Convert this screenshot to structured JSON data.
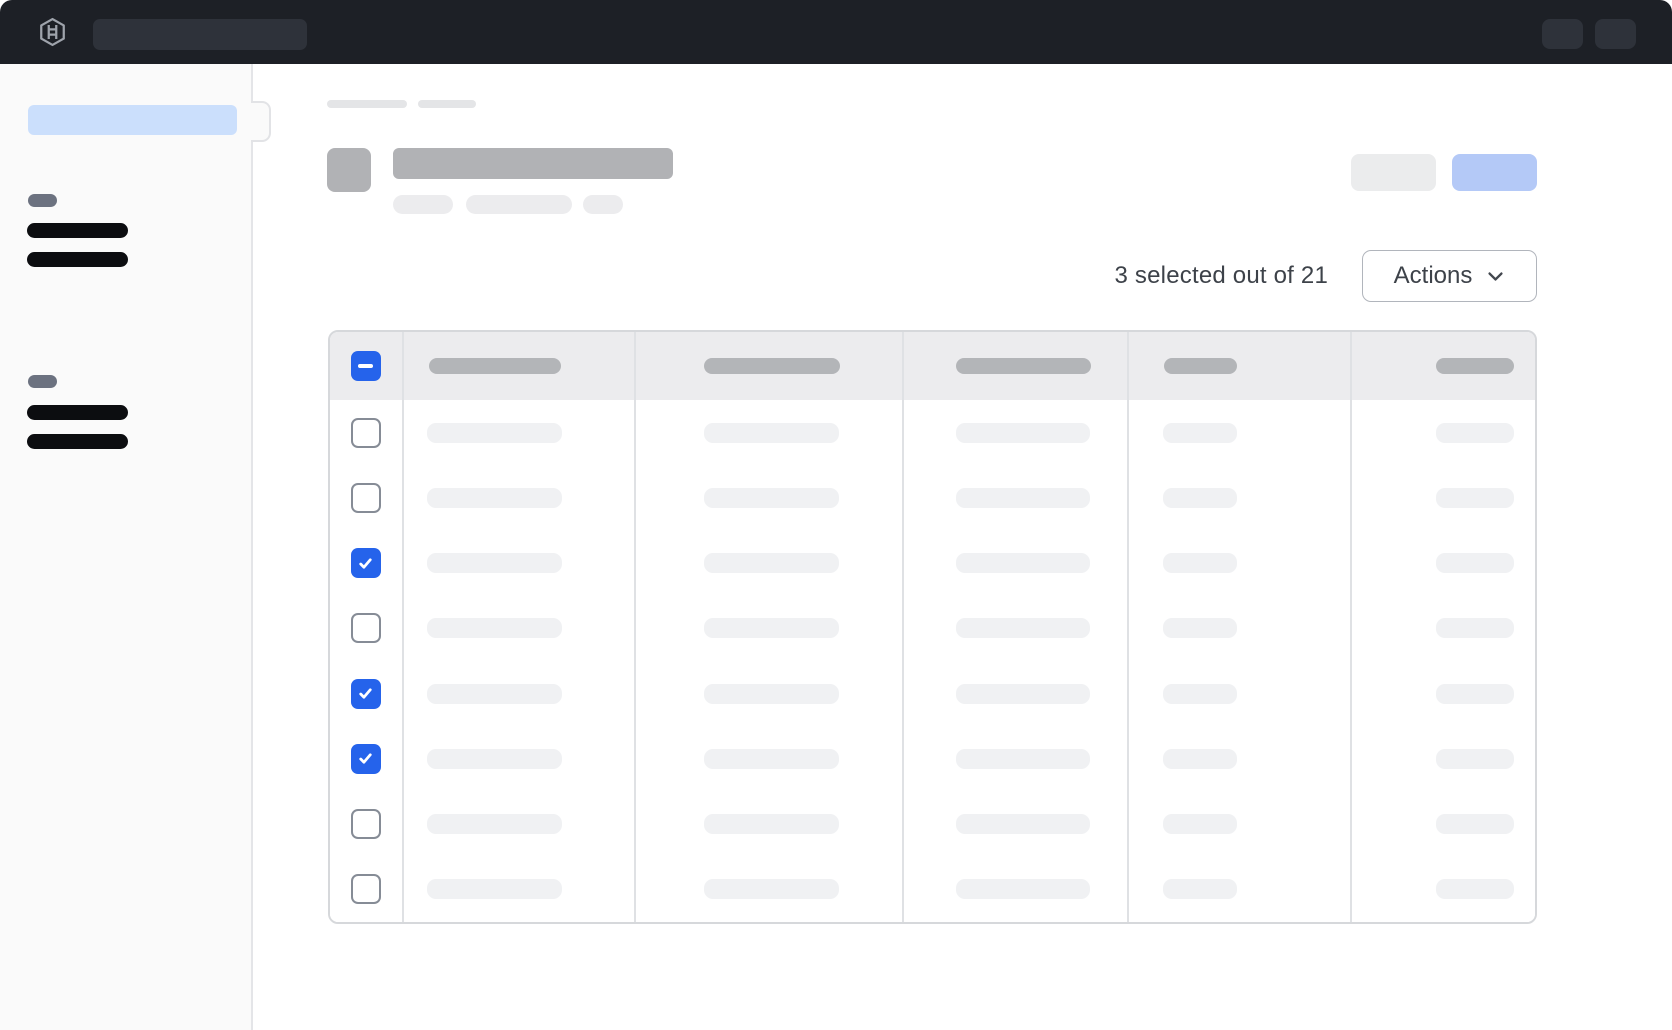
{
  "topbar": {
    "logo_icon": "hashicorp-logo",
    "search_skeleton": true,
    "right_action_skeletons": 2
  },
  "sidebar": {
    "active_item_skeleton": true,
    "groups": [
      {
        "label_skeleton": true,
        "item_skeletons": 2
      },
      {
        "label_skeleton": true,
        "item_skeletons": 2
      }
    ]
  },
  "page_header": {
    "breadcrumb_skeletons": 2,
    "icon_skeleton": true,
    "title_skeleton": true,
    "badge_skeletons": 3,
    "secondary_button_skeleton": true,
    "primary_button_skeleton": true
  },
  "selection": {
    "summary": "3 selected out of 21",
    "selected_count": 3,
    "total_count": 21
  },
  "actions_button": {
    "label": "Actions",
    "icon": "chevron-down-icon"
  },
  "table": {
    "select_all_state": "indeterminate",
    "column_count": 5,
    "row_count": 8,
    "rows": [
      {
        "checked": false
      },
      {
        "checked": false
      },
      {
        "checked": true
      },
      {
        "checked": false
      },
      {
        "checked": true
      },
      {
        "checked": true
      },
      {
        "checked": false
      },
      {
        "checked": false
      }
    ]
  },
  "colors": {
    "topbar_background": "#1d2026",
    "checkbox_blue": "#2563eb",
    "primary_button_blue": "#b4c9f7",
    "sidebar_active_blue": "#cbdffc",
    "table_header_background": "#ececee"
  }
}
